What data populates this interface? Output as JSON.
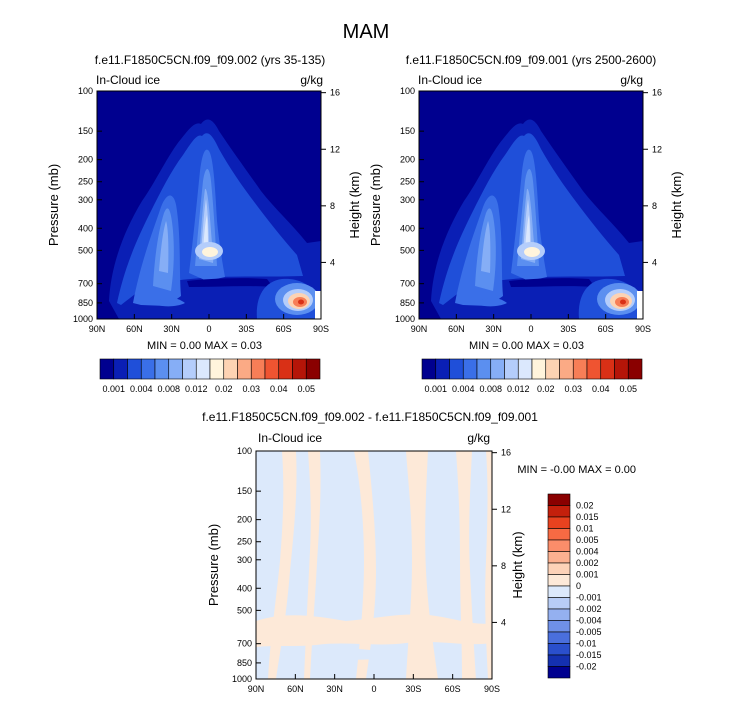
{
  "page_title": "MAM",
  "chart_data": [
    {
      "type": "heatmap",
      "title": "f.e11.F1850C5CN.f09_f09.002 (yrs 35-135)",
      "left_label": "In-Cloud ice",
      "units": "g/kg",
      "ylabel": "Pressure (mb)",
      "right_ylabel": "Height (km)",
      "x_ticks": [
        "90N",
        "60N",
        "30N",
        "0",
        "30S",
        "60S",
        "90S"
      ],
      "y_ticks": [
        "100",
        "150",
        "200",
        "250",
        "300",
        "400",
        "500",
        "700",
        "850",
        "1000"
      ],
      "height_ticks": [
        "16",
        "12",
        "8",
        "4"
      ],
      "stats": "MIN =   0.00  MAX =   0.03",
      "colorbar": {
        "orientation": "horizontal",
        "labels": [
          "0.001",
          "0.004",
          "0.008",
          "0.012",
          "0.02",
          "0.03",
          "0.04",
          "0.05"
        ],
        "colors": [
          "#00008f",
          "#0a1fb5",
          "#1f4fd9",
          "#3a6fe8",
          "#5b8ff0",
          "#86aef6",
          "#b4cdfb",
          "#dbe8fd",
          "#fff4dc",
          "#fdd3b3",
          "#fbaa85",
          "#f77e57",
          "#ef5431",
          "#d93016",
          "#b51508",
          "#8a0000"
        ]
      },
      "ylim": [
        1000,
        100
      ],
      "xlim": [
        "90N",
        "90S"
      ]
    },
    {
      "type": "heatmap",
      "title": "f.e11.F1850C5CN.f09_f09.001 (yrs 2500-2600)",
      "left_label": "In-Cloud ice",
      "units": "g/kg",
      "ylabel": "Pressure (mb)",
      "right_ylabel": "Height (km)",
      "x_ticks": [
        "90N",
        "60N",
        "30N",
        "0",
        "30S",
        "60S",
        "90S"
      ],
      "y_ticks": [
        "100",
        "150",
        "200",
        "250",
        "300",
        "400",
        "500",
        "700",
        "850",
        "1000"
      ],
      "height_ticks": [
        "16",
        "12",
        "8",
        "4"
      ],
      "stats": "MIN =   0.00  MAX =   0.03",
      "colorbar": {
        "orientation": "horizontal",
        "labels": [
          "0.001",
          "0.004",
          "0.008",
          "0.012",
          "0.02",
          "0.03",
          "0.04",
          "0.05"
        ],
        "colors": [
          "#00008f",
          "#0a1fb5",
          "#1f4fd9",
          "#3a6fe8",
          "#5b8ff0",
          "#86aef6",
          "#b4cdfb",
          "#dbe8fd",
          "#fff4dc",
          "#fdd3b3",
          "#fbaa85",
          "#f77e57",
          "#ef5431",
          "#d93016",
          "#b51508",
          "#8a0000"
        ]
      },
      "ylim": [
        1000,
        100
      ],
      "xlim": [
        "90N",
        "90S"
      ]
    },
    {
      "type": "heatmap",
      "title": "f.e11.F1850C5CN.f09_f09.002 - f.e11.F1850C5CN.f09_f09.001",
      "left_label": "In-Cloud ice",
      "units": "g/kg",
      "ylabel": "Pressure (mb)",
      "right_ylabel": "Height (km)",
      "x_ticks": [
        "90N",
        "60N",
        "30N",
        "0",
        "30S",
        "60S",
        "90S"
      ],
      "y_ticks": [
        "100",
        "150",
        "200",
        "250",
        "300",
        "400",
        "500",
        "700",
        "850",
        "1000"
      ],
      "height_ticks": [
        "16",
        "12",
        "8",
        "4"
      ],
      "stats": "MIN =  -0.00  MAX =   0.00",
      "colorbar": {
        "orientation": "vertical",
        "labels": [
          "0.02",
          "0.015",
          "0.01",
          "0.005",
          "0.004",
          "0.002",
          "0.001",
          "0",
          "-0.001",
          "-0.002",
          "-0.004",
          "-0.005",
          "-0.01",
          "-0.015",
          "-0.02"
        ],
        "colors": [
          "#8a0000",
          "#c4200c",
          "#e8421f",
          "#f76a43",
          "#fb8d6a",
          "#fcb090",
          "#fdd2b8",
          "#fde9d8",
          "#dce9fb",
          "#b8cdf6",
          "#94b0f0",
          "#6f90e8",
          "#4a6fdd",
          "#2a4fcc",
          "#1430b0",
          "#00008f"
        ]
      },
      "ylim": [
        1000,
        100
      ],
      "xlim": [
        "90N",
        "90S"
      ]
    }
  ]
}
